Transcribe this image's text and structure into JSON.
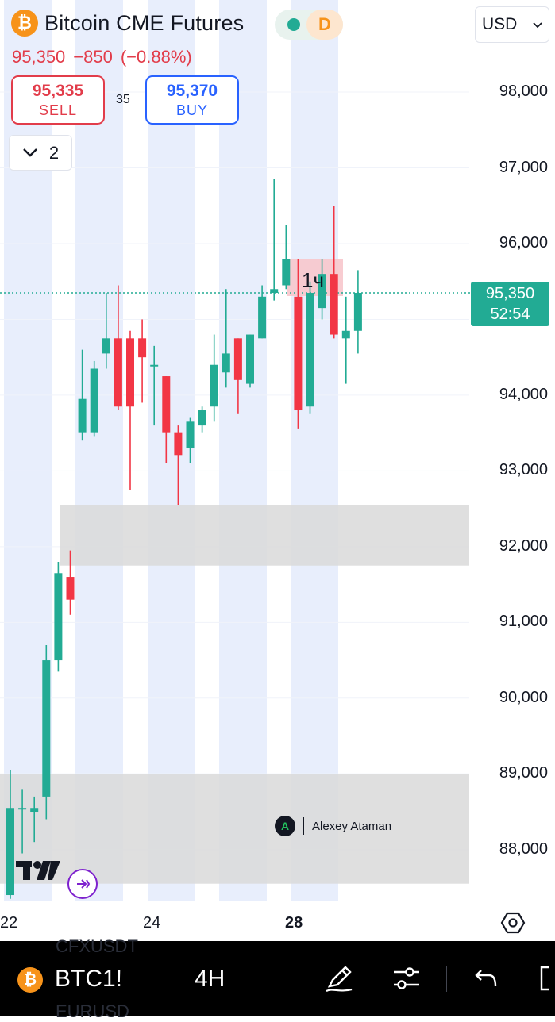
{
  "header": {
    "symbol_title": "Bitcoin CME Futures",
    "timeframe_badge": "D",
    "last_price": "95,350",
    "change": "−850",
    "change_pct": "(−0.88%)"
  },
  "order": {
    "sell_price": "95,335",
    "sell_label": "SELL",
    "spread": "35",
    "buy_price": "95,370",
    "buy_label": "BUY"
  },
  "indicators_toggle": {
    "count": "2"
  },
  "currency": {
    "value": "USD"
  },
  "current_price_tag": {
    "price": "95,350",
    "countdown": "52:54"
  },
  "marker_label": "1ч",
  "watermark": {
    "author": "Alexey Ataman"
  },
  "toolbar": {
    "symbol": "BTC1!",
    "interval": "4H",
    "ghost_1": "CFXUSDT",
    "ghost_2": "EURUSD"
  },
  "colors": {
    "up": "#22ab94",
    "down": "#f23645",
    "session_shade": "#e8eefc",
    "zone": "#d9d9d9",
    "btc": "#f7931a"
  },
  "chart_data": {
    "type": "candlestick",
    "y_axis": {
      "ticks": [
        "98,000",
        "97,000",
        "96,000",
        "94,000",
        "93,000",
        "92,000",
        "91,000",
        "90,000",
        "89,000",
        "88,000"
      ],
      "ylim": [
        87350,
        98500
      ]
    },
    "x_axis": {
      "ticks": [
        "22",
        "24",
        "28"
      ],
      "bold_tick": "28"
    },
    "current_price": 95350,
    "zones": [
      {
        "from": 91750,
        "to": 92550
      },
      {
        "from": 87550,
        "to": 89000
      }
    ],
    "candles": [
      {
        "o": 87400,
        "h": 89050,
        "l": 87350,
        "c": 88550
      },
      {
        "o": 88550,
        "h": 88800,
        "l": 87950,
        "c": 88550
      },
      {
        "o": 88500,
        "h": 88700,
        "l": 88100,
        "c": 88550
      },
      {
        "o": 88700,
        "h": 90700,
        "l": 88400,
        "c": 90500
      },
      {
        "o": 90500,
        "h": 91800,
        "l": 90350,
        "c": 91650
      },
      {
        "o": 91600,
        "h": 91950,
        "l": 91100,
        "c": 91300
      },
      {
        "o": 93500,
        "h": 94600,
        "l": 93400,
        "c": 93950
      },
      {
        "o": 93500,
        "h": 94450,
        "l": 93450,
        "c": 94350
      },
      {
        "o": 94550,
        "h": 95350,
        "l": 94350,
        "c": 94750
      },
      {
        "o": 94750,
        "h": 95450,
        "l": 93800,
        "c": 93850
      },
      {
        "o": 94750,
        "h": 94850,
        "l": 92750,
        "c": 93850
      },
      {
        "o": 94750,
        "h": 95000,
        "l": 93900,
        "c": 94500
      },
      {
        "o": 94400,
        "h": 94650,
        "l": 93600,
        "c": 94400
      },
      {
        "o": 94250,
        "h": 94250,
        "l": 93100,
        "c": 93500
      },
      {
        "o": 93500,
        "h": 93600,
        "l": 92550,
        "c": 93200
      },
      {
        "o": 93300,
        "h": 93700,
        "l": 93100,
        "c": 93650
      },
      {
        "o": 93600,
        "h": 93850,
        "l": 93500,
        "c": 93800
      },
      {
        "o": 93850,
        "h": 94800,
        "l": 93650,
        "c": 94400
      },
      {
        "o": 94300,
        "h": 95400,
        "l": 94100,
        "c": 94550
      },
      {
        "o": 94750,
        "h": 94750,
        "l": 93750,
        "c": 94200
      },
      {
        "o": 94150,
        "h": 94800,
        "l": 94100,
        "c": 94800
      },
      {
        "o": 94750,
        "h": 95450,
        "l": 94750,
        "c": 95300
      },
      {
        "o": 95350,
        "h": 96850,
        "l": 95250,
        "c": 95400
      },
      {
        "o": 95450,
        "h": 96250,
        "l": 95400,
        "c": 95800
      },
      {
        "o": 95300,
        "h": 95800,
        "l": 93550,
        "c": 93800
      },
      {
        "o": 93850,
        "h": 95500,
        "l": 93750,
        "c": 95350
      },
      {
        "o": 95150,
        "h": 95800,
        "l": 95000,
        "c": 95600
      },
      {
        "o": 95600,
        "h": 96500,
        "l": 94750,
        "c": 94800
      },
      {
        "o": 94750,
        "h": 95300,
        "l": 94150,
        "c": 94850
      },
      {
        "o": 94850,
        "h": 95650,
        "l": 94550,
        "c": 95350
      }
    ]
  }
}
